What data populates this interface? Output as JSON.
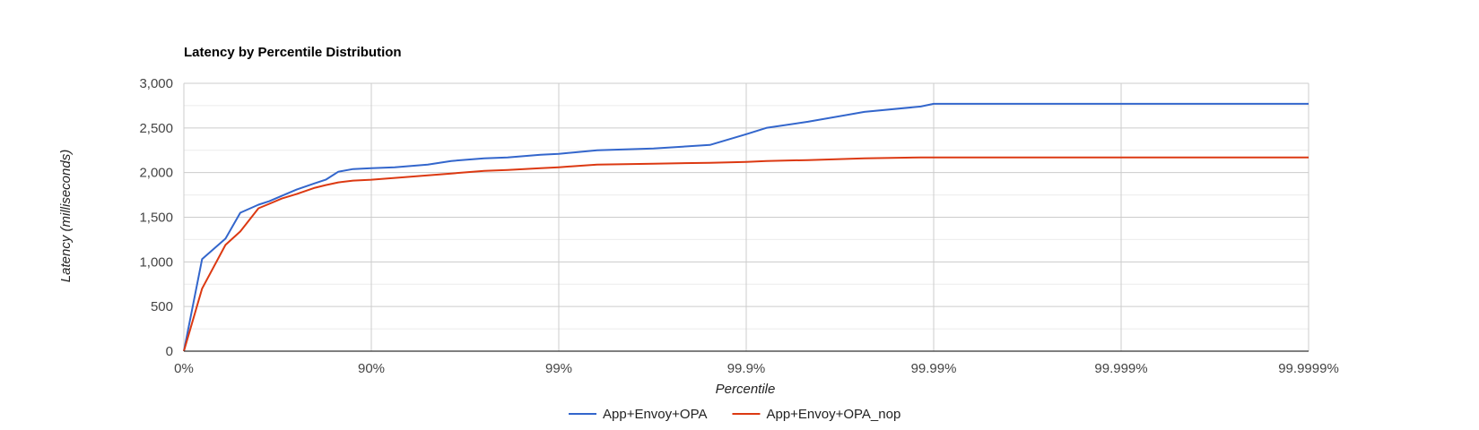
{
  "chart_data": {
    "type": "line",
    "title": "Latency by Percentile Distribution",
    "xlabel": "Percentile",
    "ylabel": "Latency (milliseconds)",
    "x_scale": "log inverse percentile (1 - p)",
    "x_ticks": [
      "0%",
      "90%",
      "99%",
      "99.9%",
      "99.99%",
      "99.999%",
      "99.9999%"
    ],
    "y_ticks": [
      "0",
      "500",
      "1,000",
      "1,500",
      "2,000",
      "2,500",
      "3,000"
    ],
    "ylim": [
      0,
      3000
    ],
    "grid": true,
    "legend_position": "bottom",
    "x": [
      0,
      20,
      40,
      50,
      60,
      65,
      70,
      75,
      80,
      82.5,
      85,
      87.5,
      90,
      92.5,
      95,
      96.25,
      97.5,
      98.125,
      98.75,
      99,
      99.375,
      99.6875,
      99.84375,
      99.9,
      99.921875,
      99.953125,
      99.9765625,
      99.98828125,
      99.99,
      99.999,
      99.9999
    ],
    "series": [
      {
        "name": "App+Envoy+OPA",
        "color": "#3366cc",
        "values": [
          0,
          1030,
          1260,
          1550,
          1640,
          1680,
          1740,
          1810,
          1880,
          1920,
          2010,
          2040,
          2050,
          2060,
          2090,
          2130,
          2160,
          2170,
          2200,
          2210,
          2250,
          2270,
          2310,
          2430,
          2500,
          2570,
          2680,
          2740,
          2770,
          2770,
          2770
        ]
      },
      {
        "name": "App+Envoy+OPA_nop",
        "color": "#dc3912",
        "values": [
          0,
          700,
          1190,
          1340,
          1600,
          1650,
          1710,
          1760,
          1830,
          1860,
          1890,
          1910,
          1920,
          1940,
          1970,
          1990,
          2020,
          2030,
          2050,
          2060,
          2090,
          2100,
          2110,
          2120,
          2130,
          2140,
          2160,
          2170,
          2170,
          2170,
          2170
        ]
      }
    ]
  }
}
